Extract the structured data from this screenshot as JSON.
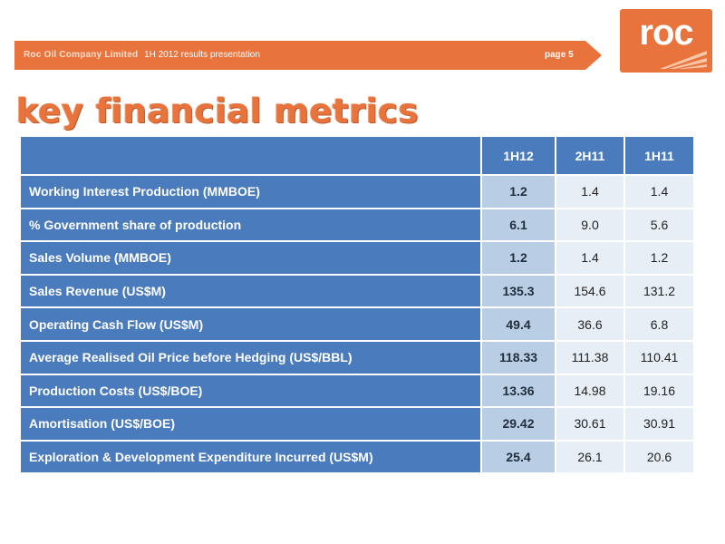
{
  "header": {
    "company": "Roc Oil Company Limited",
    "subtitle": "1H 2012 results presentation",
    "page": "page 5"
  },
  "logo": {
    "text": "roc",
    "icon": "roc-logo-stripes-icon"
  },
  "title": "key financial metrics",
  "colors": {
    "accent": "#e9733d",
    "table_header": "#4a7bbd",
    "current_cell": "#b9cde4",
    "prior_cell": "#e8eef6"
  },
  "table": {
    "columns": [
      "1H12",
      "2H11",
      "1H11"
    ],
    "rows": [
      {
        "label": "Working Interest Production (MMBOE)",
        "values": [
          "1.2",
          "1.4",
          "1.4"
        ]
      },
      {
        "label": "% Government share of production",
        "values": [
          "6.1",
          "9.0",
          "5.6"
        ]
      },
      {
        "label": "Sales Volume (MMBOE)",
        "values": [
          "1.2",
          "1.4",
          "1.2"
        ]
      },
      {
        "label": "Sales Revenue (US$M)",
        "values": [
          "135.3",
          "154.6",
          "131.2"
        ]
      },
      {
        "label": "Operating Cash Flow (US$M)",
        "values": [
          "49.4",
          "36.6",
          "6.8"
        ]
      },
      {
        "label": "Average Realised Oil Price before Hedging (US$/BBL)",
        "values": [
          "118.33",
          "111.38",
          "110.41"
        ]
      },
      {
        "label": "Production Costs (US$/BOE)",
        "values": [
          "13.36",
          "14.98",
          "19.16"
        ]
      },
      {
        "label": "Amortisation (US$/BOE)",
        "values": [
          "29.42",
          "30.61",
          "30.91"
        ]
      },
      {
        "label": "Exploration & Development Expenditure Incurred (US$M)",
        "values": [
          "25.4",
          "26.1",
          "20.6"
        ]
      }
    ]
  }
}
